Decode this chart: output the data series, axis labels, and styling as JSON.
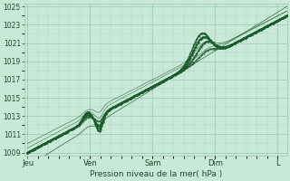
{
  "title": "",
  "xlabel": "Pression niveau de la mer( hPa )",
  "bg_color": "#c8e8d8",
  "plot_bg_color": "#c8e8d8",
  "grid_major_color": "#98c8b0",
  "grid_minor_color": "#b8d8c4",
  "line_color": "#1a5c2a",
  "ylim": [
    1009,
    1025
  ],
  "yticks": [
    1009,
    1011,
    1013,
    1015,
    1017,
    1019,
    1021,
    1023,
    1025
  ],
  "x_labels": [
    "Jeu",
    "Ven",
    "Sam",
    "Dim",
    "L"
  ],
  "x_tick_pos": [
    0.0,
    1.0,
    2.0,
    3.0,
    4.0
  ],
  "font_color": "#1a4a2a",
  "n_points": 200
}
